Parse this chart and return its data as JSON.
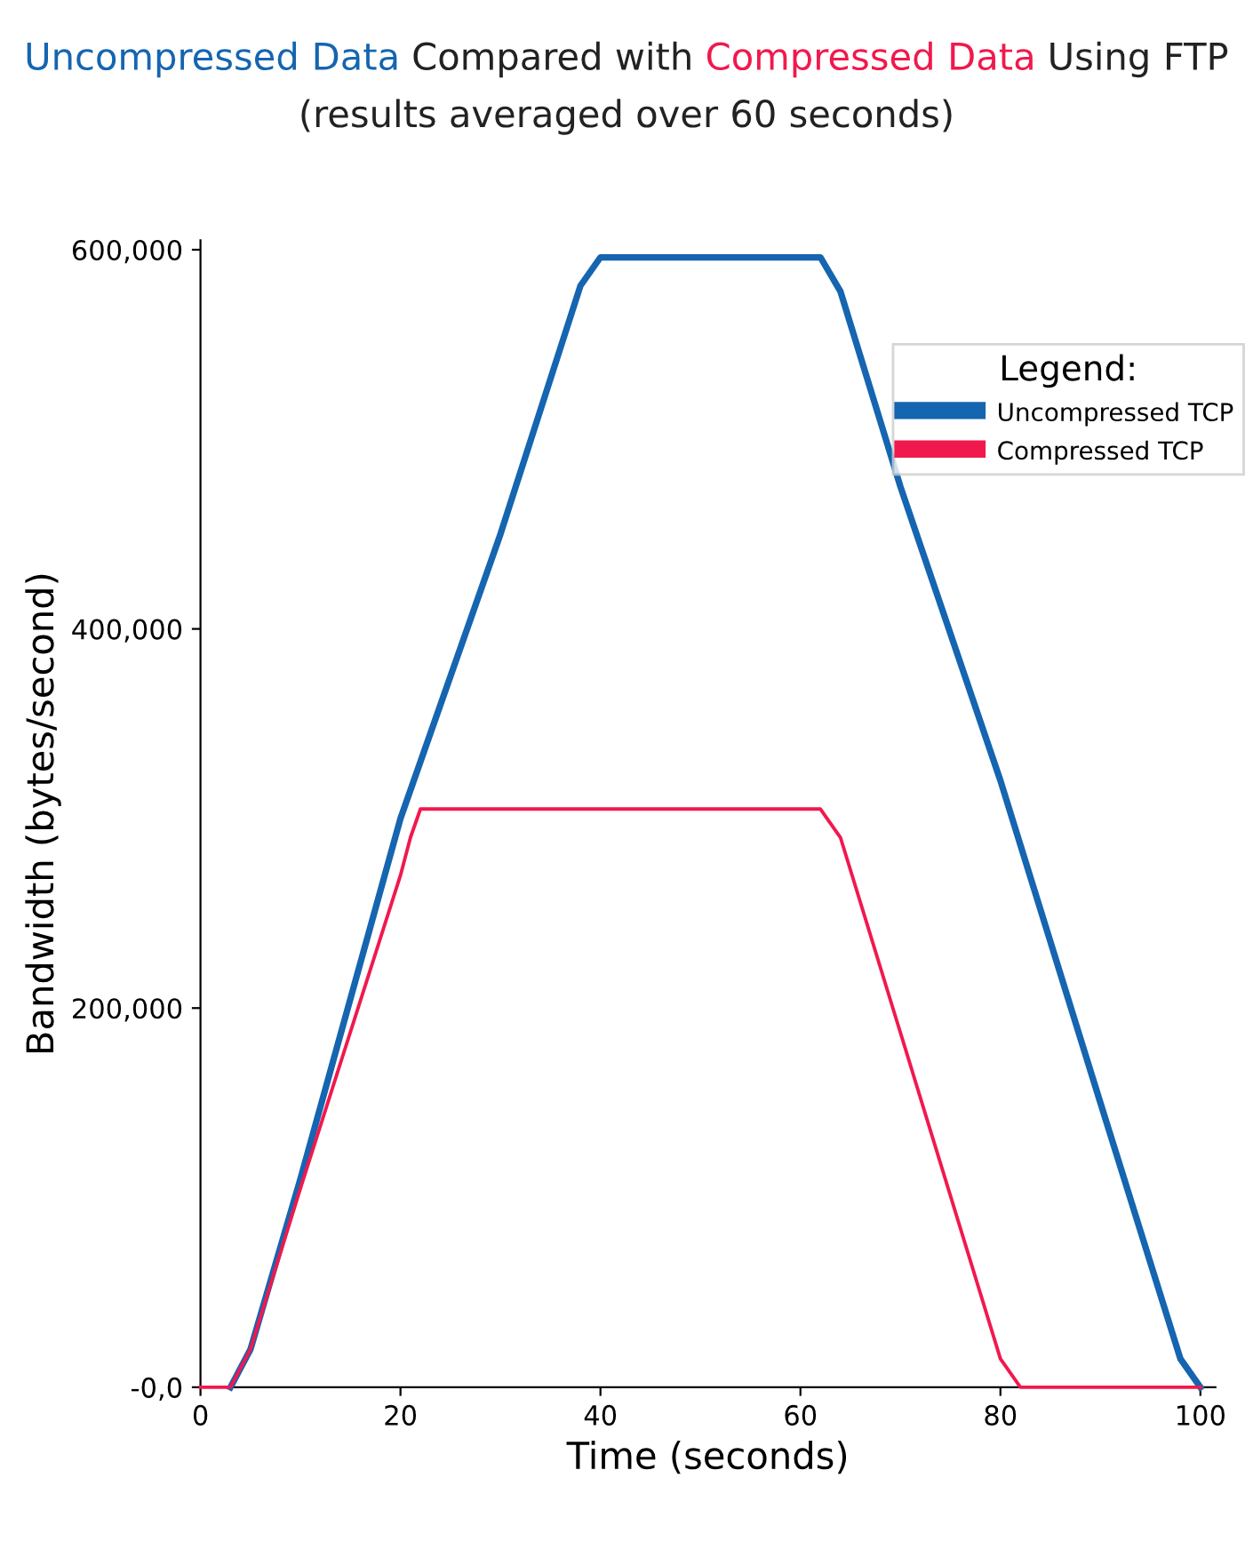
{
  "chart_data": {
    "type": "line",
    "title": "Uncompressed Data Compared with Compressed Data Using FTP",
    "subtitle": "(results averaged over 60 seconds)",
    "xlabel": "Time (seconds)",
    "ylabel": "Bandwidth (bytes/second)",
    "legend_title": "Legend:",
    "series": [
      {
        "name": "Uncompressed TCP",
        "color": "#1565b0",
        "x": [
          3,
          5,
          10,
          20,
          30,
          38,
          40,
          62,
          64,
          70,
          80,
          90,
          98,
          100
        ],
        "values": [
          0,
          20000,
          110000,
          300000,
          450000,
          581000,
          596000,
          596000,
          578000,
          475000,
          320000,
          150000,
          15000,
          0
        ]
      },
      {
        "name": "Compressed TCP",
        "color": "#f0194d",
        "x": [
          0,
          3,
          5,
          10,
          20,
          21,
          22,
          62,
          64,
          70,
          80,
          82,
          100
        ],
        "values": [
          0,
          0,
          20000,
          105000,
          270000,
          290000,
          305000,
          305000,
          290000,
          187000,
          15000,
          0,
          0
        ]
      }
    ],
    "xlim": [
      0,
      101.5
    ],
    "ylim": [
      0,
      605000
    ],
    "xticks": [
      0,
      20,
      40,
      60,
      80,
      100
    ],
    "yticks": [
      {
        "value": 0,
        "label": "-0,0"
      },
      {
        "value": 200000,
        "label": "200,000"
      },
      {
        "value": 400000,
        "label": "400,000"
      },
      {
        "value": 600000,
        "label": "600,000"
      }
    ],
    "grid": false,
    "legend": "top right",
    "marker": "none",
    "line_style": "solid"
  }
}
